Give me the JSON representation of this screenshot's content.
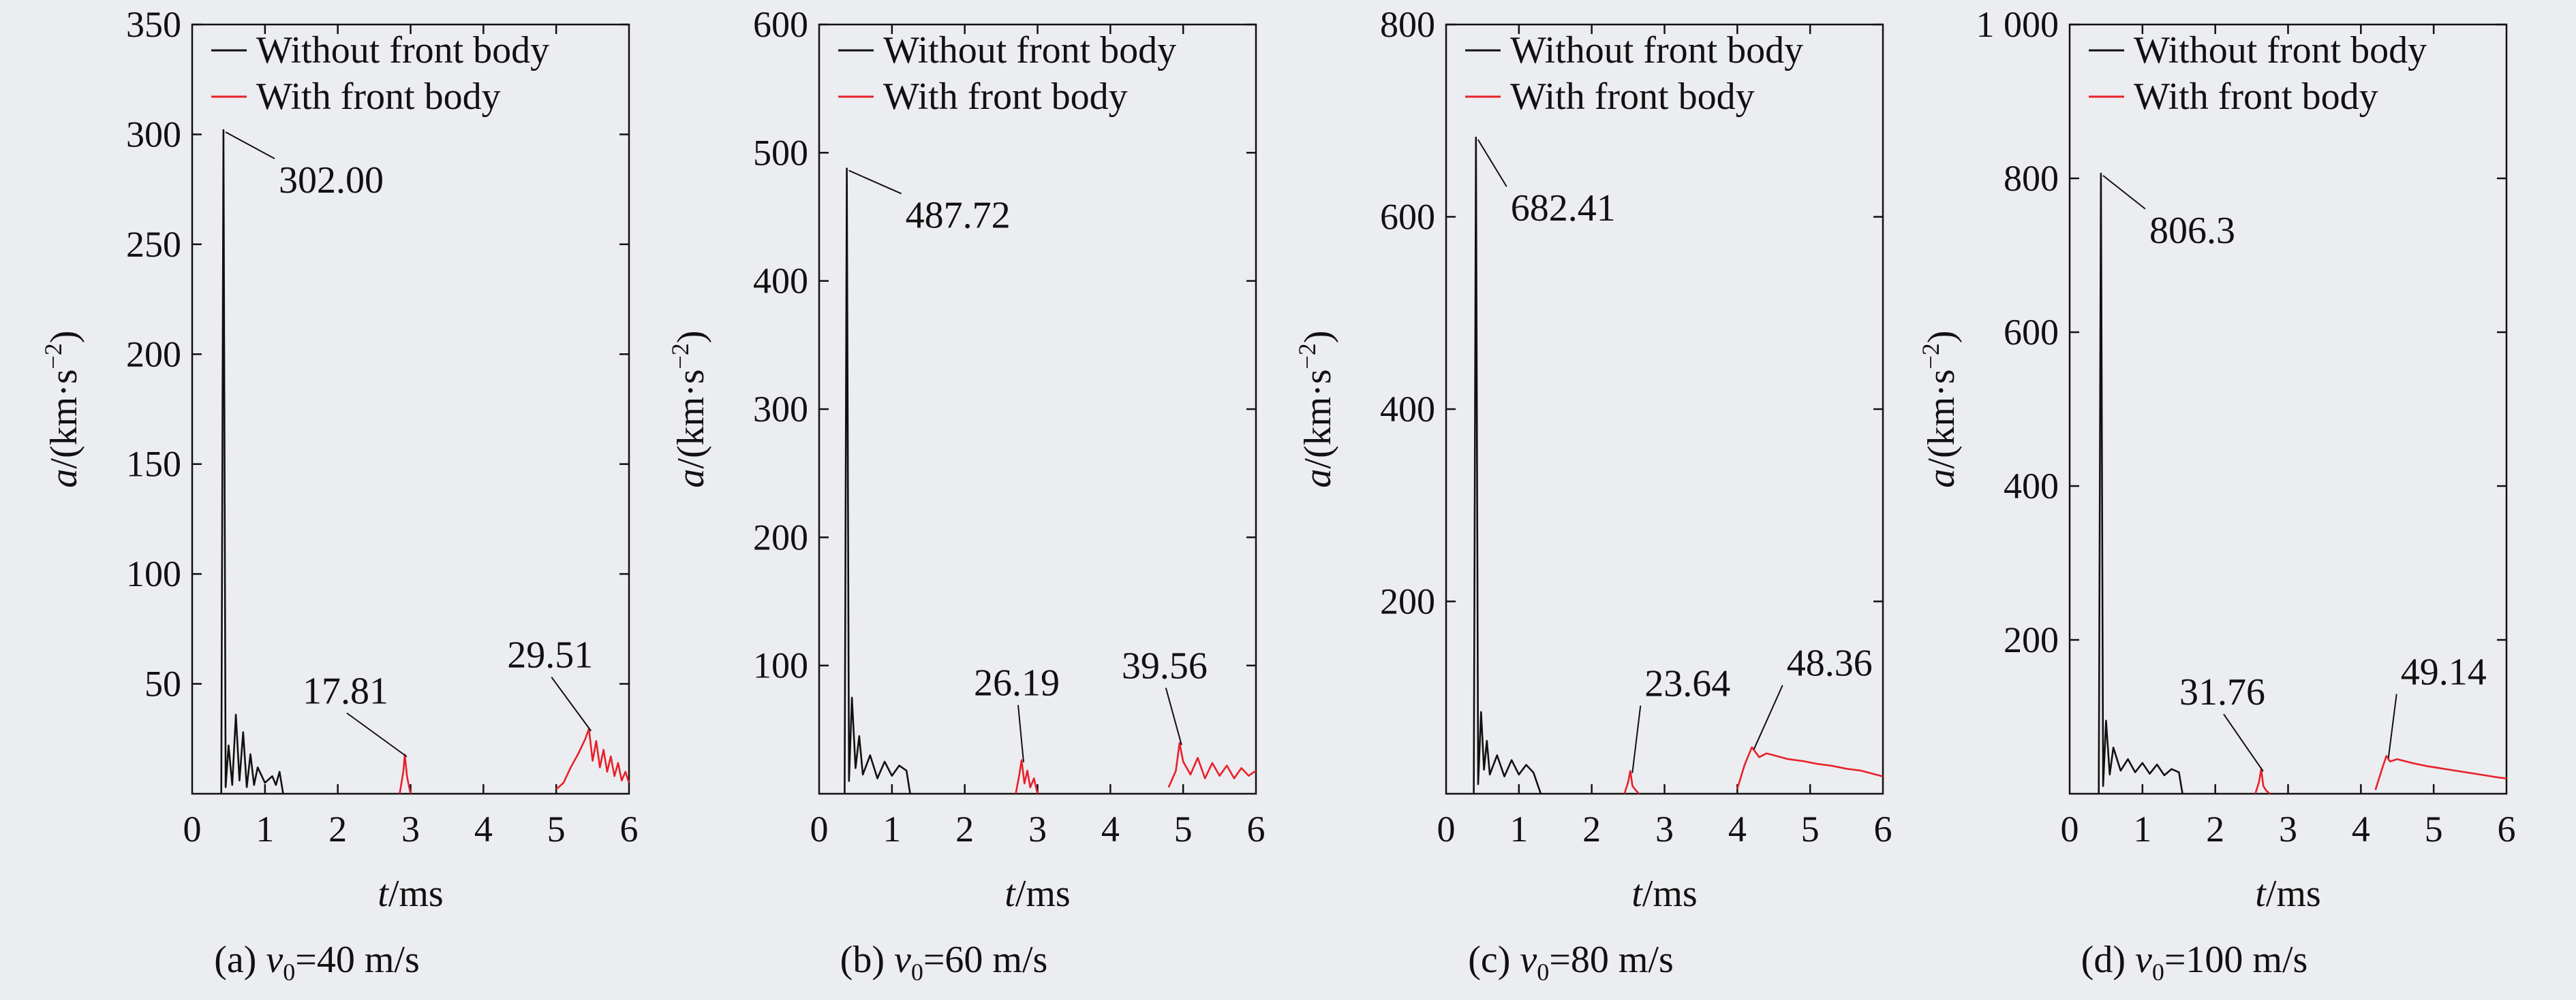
{
  "figure": {
    "legend": {
      "without": "Without front body",
      "with": "With front body"
    },
    "xlabel": {
      "var": "t",
      "unit": "/ms"
    },
    "ylabel": {
      "var": "a",
      "unit": "/(km·s",
      "sup": "−2",
      "close": ")"
    },
    "colors": {
      "without": "#111111",
      "with": "#e8202a",
      "axis": "#111111"
    }
  },
  "chart_data": [
    {
      "type": "line",
      "caption": {
        "prefix": "(a) ",
        "var": "v",
        "sub": "0",
        "value": "=40 m/s"
      },
      "xlim": [
        0,
        6
      ],
      "ylim": [
        0,
        350
      ],
      "xticks": [
        "0",
        "1",
        "2",
        "3",
        "4",
        "5",
        "6"
      ],
      "yticks": [
        {
          "v": 50,
          "label": "50"
        },
        {
          "v": 100,
          "label": "100"
        },
        {
          "v": 150,
          "label": "150"
        },
        {
          "v": 200,
          "label": "200"
        },
        {
          "v": 250,
          "label": "250"
        },
        {
          "v": 300,
          "label": "300"
        },
        {
          "v": 350,
          "label": "350"
        }
      ],
      "series": [
        {
          "name": "Without front body",
          "peak": 302.0,
          "segments": [
            {
              "x": [
                0.4,
                0.43,
                0.46,
                0.5,
                0.55,
                0.6,
                0.65,
                0.7,
                0.75,
                0.8,
                0.85,
                0.9,
                1.0,
                1.1,
                1.15,
                1.2,
                1.25
              ],
              "y": [
                0,
                302.0,
                3,
                22,
                4,
                36,
                6,
                28,
                3,
                18,
                4,
                12,
                5,
                8,
                4,
                10,
                0
              ]
            }
          ]
        },
        {
          "name": "With front body",
          "segments": [
            {
              "x": [
                2.85,
                2.9,
                2.92,
                2.95,
                2.98,
                3.0
              ],
              "y": [
                0,
                10,
                17.81,
                8,
                3,
                0
              ]
            },
            {
              "x": [
                5.0,
                5.1,
                5.2,
                5.3,
                5.4,
                5.45,
                5.5,
                5.55,
                5.6,
                5.65,
                5.7,
                5.75,
                5.8,
                5.85,
                5.9,
                5.95,
                6.0
              ],
              "y": [
                2,
                5,
                12,
                18,
                25,
                29.51,
                15,
                24,
                12,
                20,
                10,
                17,
                8,
                14,
                6,
                10,
                5
              ]
            }
          ]
        }
      ],
      "annotations": [
        {
          "label": "302.00",
          "x": 0.43,
          "y": 302.0
        },
        {
          "label": "17.81",
          "x": 2.92,
          "y": 17.81
        },
        {
          "label": "29.51",
          "x": 5.45,
          "y": 29.51
        }
      ]
    },
    {
      "type": "line",
      "caption": {
        "prefix": "(b) ",
        "var": "v",
        "sub": "0",
        "value": "=60 m/s"
      },
      "xlim": [
        0,
        6
      ],
      "ylim": [
        0,
        600
      ],
      "xticks": [
        "0",
        "1",
        "2",
        "3",
        "4",
        "5",
        "6"
      ],
      "yticks": [
        {
          "v": 100,
          "label": "100"
        },
        {
          "v": 200,
          "label": "200"
        },
        {
          "v": 300,
          "label": "300"
        },
        {
          "v": 400,
          "label": "400"
        },
        {
          "v": 500,
          "label": "500"
        },
        {
          "v": 600,
          "label": "600"
        }
      ],
      "series": [
        {
          "name": "Without front body",
          "peak": 487.72,
          "segments": [
            {
              "x": [
                0.35,
                0.38,
                0.41,
                0.45,
                0.5,
                0.55,
                0.6,
                0.7,
                0.8,
                0.9,
                1.0,
                1.1,
                1.2,
                1.25
              ],
              "y": [
                0,
                487.72,
                10,
                75,
                20,
                45,
                15,
                30,
                12,
                25,
                14,
                22,
                18,
                0
              ]
            }
          ]
        },
        {
          "name": "With front body",
          "segments": [
            {
              "x": [
                2.7,
                2.75,
                2.78,
                2.82,
                2.86,
                2.9,
                2.95,
                3.0
              ],
              "y": [
                0,
                15,
                26.19,
                8,
                18,
                5,
                12,
                0
              ]
            },
            {
              "x": [
                4.8,
                4.9,
                4.95,
                5.0,
                5.1,
                5.2,
                5.3,
                5.4,
                5.5,
                5.6,
                5.7,
                5.8,
                5.9,
                6.0
              ],
              "y": [
                5,
                18,
                39.56,
                25,
                15,
                28,
                12,
                24,
                14,
                22,
                12,
                20,
                14,
                18
              ]
            }
          ]
        }
      ],
      "annotations": [
        {
          "label": "487.72",
          "x": 0.38,
          "y": 487.72
        },
        {
          "label": "26.19",
          "x": 2.78,
          "y": 26.19
        },
        {
          "label": "39.56",
          "x": 4.95,
          "y": 39.56
        }
      ]
    },
    {
      "type": "line",
      "caption": {
        "prefix": "(c) ",
        "var": "v",
        "sub": "0",
        "value": "=80 m/s"
      },
      "xlim": [
        0,
        6
      ],
      "ylim": [
        0,
        800
      ],
      "xticks": [
        "0",
        "1",
        "2",
        "3",
        "4",
        "5",
        "6"
      ],
      "yticks": [
        {
          "v": 200,
          "label": "200"
        },
        {
          "v": 400,
          "label": "400"
        },
        {
          "v": 600,
          "label": "600"
        },
        {
          "v": 800,
          "label": "800"
        }
      ],
      "series": [
        {
          "name": "Without front body",
          "peak": 682.41,
          "segments": [
            {
              "x": [
                0.38,
                0.41,
                0.44,
                0.48,
                0.52,
                0.56,
                0.6,
                0.7,
                0.8,
                0.9,
                1.0,
                1.1,
                1.2,
                1.3
              ],
              "y": [
                0,
                682.41,
                10,
                85,
                25,
                55,
                20,
                40,
                18,
                35,
                20,
                30,
                22,
                0
              ]
            }
          ]
        },
        {
          "name": "With front body",
          "segments": [
            {
              "x": [
                2.45,
                2.5,
                2.53,
                2.56,
                2.6,
                2.65
              ],
              "y": [
                0,
                12,
                23.64,
                8,
                4,
                0
              ]
            },
            {
              "x": [
                4.0,
                4.1,
                4.2,
                4.3,
                4.4,
                4.5,
                4.7,
                4.9,
                5.1,
                5.3,
                5.5,
                5.7,
                5.9,
                6.0
              ],
              "y": [
                5,
                30,
                48.36,
                38,
                42,
                40,
                36,
                34,
                31,
                29,
                26,
                24,
                20,
                18
              ]
            }
          ]
        }
      ],
      "annotations": [
        {
          "label": "682.41",
          "x": 0.41,
          "y": 682.41
        },
        {
          "label": "23.64",
          "x": 2.53,
          "y": 23.64
        },
        {
          "label": "48.36",
          "x": 4.2,
          "y": 48.36
        }
      ]
    },
    {
      "type": "line",
      "caption": {
        "prefix": "(d) ",
        "var": "v",
        "sub": "0",
        "value": "=100 m/s"
      },
      "xlim": [
        0,
        6
      ],
      "ylim": [
        0,
        1000
      ],
      "xticks": [
        "0",
        "1",
        "2",
        "3",
        "4",
        "5",
        "6"
      ],
      "yticks": [
        {
          "v": 200,
          "label": "200"
        },
        {
          "v": 400,
          "label": "400"
        },
        {
          "v": 600,
          "label": "600"
        },
        {
          "v": 800,
          "label": "800"
        },
        {
          "v": 1000,
          "label": "1 000"
        }
      ],
      "series": [
        {
          "name": "Without front body",
          "peak": 806.3,
          "segments": [
            {
              "x": [
                0.4,
                0.43,
                0.46,
                0.5,
                0.55,
                0.6,
                0.7,
                0.8,
                0.9,
                1.0,
                1.1,
                1.2,
                1.3,
                1.4,
                1.5,
                1.55
              ],
              "y": [
                0,
                806.3,
                10,
                95,
                25,
                60,
                30,
                45,
                28,
                40,
                26,
                38,
                24,
                32,
                28,
                0
              ]
            }
          ]
        },
        {
          "name": "With front body",
          "segments": [
            {
              "x": [
                2.55,
                2.6,
                2.63,
                2.66,
                2.7,
                2.75
              ],
              "y": [
                0,
                15,
                31.76,
                10,
                4,
                0
              ]
            },
            {
              "x": [
                4.2,
                4.3,
                4.35,
                4.4,
                4.5,
                4.7,
                4.9,
                5.1,
                5.3,
                5.5,
                5.7,
                5.9,
                6.0
              ],
              "y": [
                5,
                35,
                49.14,
                42,
                45,
                40,
                36,
                33,
                30,
                27,
                24,
                21,
                20
              ]
            }
          ]
        }
      ],
      "annotations": [
        {
          "label": "806.3",
          "x": 0.43,
          "y": 806.3
        },
        {
          "label": "31.76",
          "x": 2.63,
          "y": 31.76
        },
        {
          "label": "49.14",
          "x": 4.35,
          "y": 49.14
        }
      ]
    }
  ]
}
